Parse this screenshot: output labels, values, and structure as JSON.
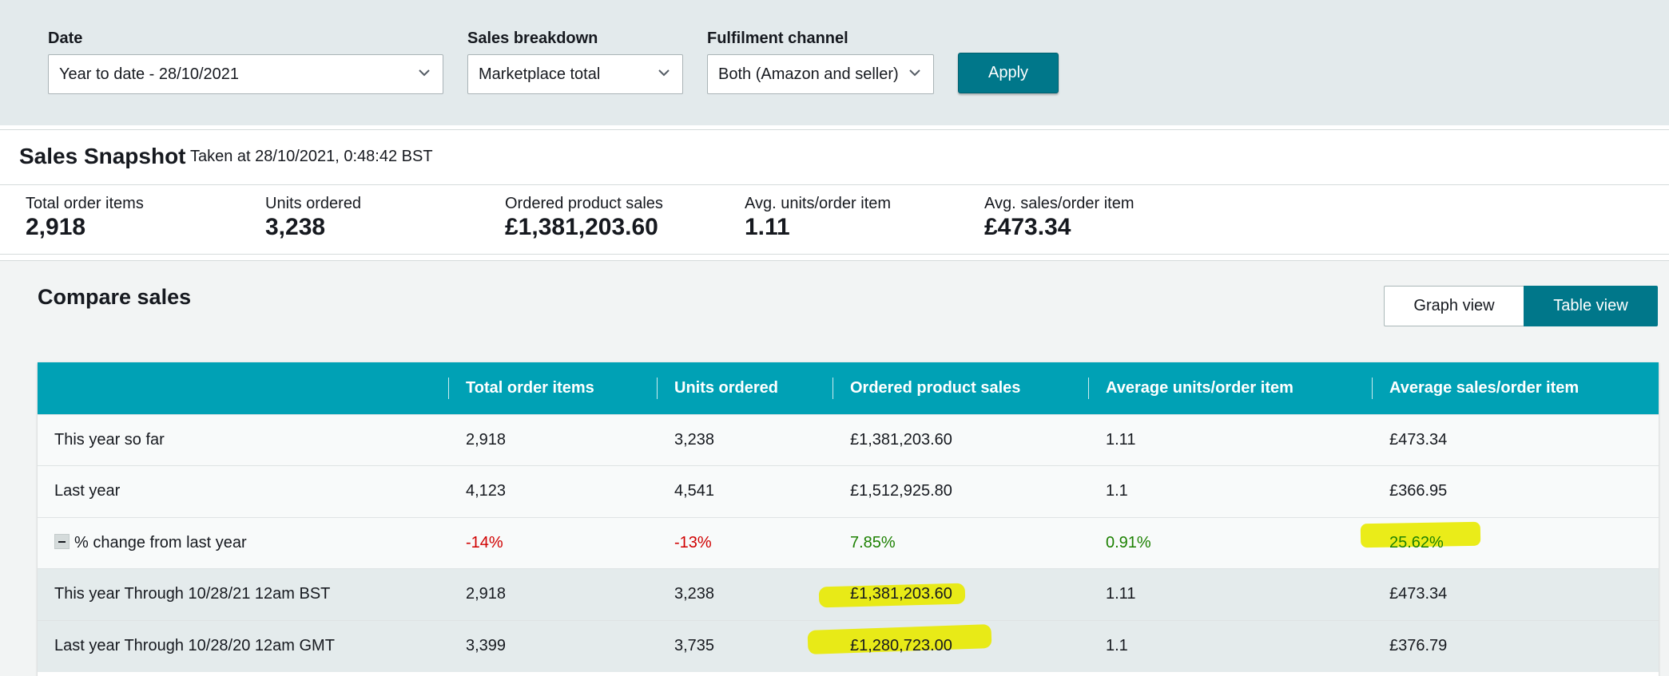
{
  "filters": {
    "date": {
      "label": "Date",
      "value": "Year to date - 28/10/2021"
    },
    "sales_breakdown": {
      "label": "Sales breakdown",
      "value": "Marketplace total"
    },
    "fulfilment_channel": {
      "label": "Fulfilment channel",
      "value": "Both (Amazon and seller)"
    },
    "apply_label": "Apply"
  },
  "snapshot": {
    "title": "Sales Snapshot",
    "taken_at": "Taken at 28/10/2021, 0:48:42 BST",
    "metrics": [
      {
        "label": "Total order items",
        "value": "2,918"
      },
      {
        "label": "Units ordered",
        "value": "3,238"
      },
      {
        "label": "Ordered product sales",
        "value": "£1,381,203.60"
      },
      {
        "label": "Avg. units/order item",
        "value": "1.11"
      },
      {
        "label": "Avg. sales/order item",
        "value": "£473.34"
      }
    ]
  },
  "compare": {
    "title": "Compare sales",
    "graph_view_label": "Graph view",
    "table_view_label": "Table view",
    "columns": [
      "",
      "Total order items",
      "Units ordered",
      "Ordered product sales",
      "Average units/order item",
      "Average sales/order item"
    ],
    "rows": [
      {
        "label": "This year so far",
        "cells": [
          "2,918",
          "3,238",
          "£1,381,203.60",
          "1.11",
          "£473.34"
        ]
      },
      {
        "label": "Last year",
        "cells": [
          "4,123",
          "4,541",
          "£1,512,925.80",
          "1.1",
          "£366.95"
        ]
      },
      {
        "label": "% change from last year",
        "cells": [
          "-14%",
          "-13%",
          "7.85%",
          "0.91%",
          "25.62%"
        ]
      },
      {
        "label": "This year Through 10/28/21 12am BST",
        "cells": [
          "2,918",
          "3,238",
          "£1,381,203.60",
          "1.11",
          "£473.34"
        ]
      },
      {
        "label": "Last year Through 10/28/20 12am GMT",
        "cells": [
          "3,399",
          "3,735",
          "£1,280,723.00",
          "1.1",
          "£376.79"
        ]
      }
    ]
  },
  "colors": {
    "accent": "#00778a",
    "table_header": "#00a1b5",
    "negative": "#d00000",
    "positive": "#1d8102",
    "highlight": "#e8ea00"
  }
}
